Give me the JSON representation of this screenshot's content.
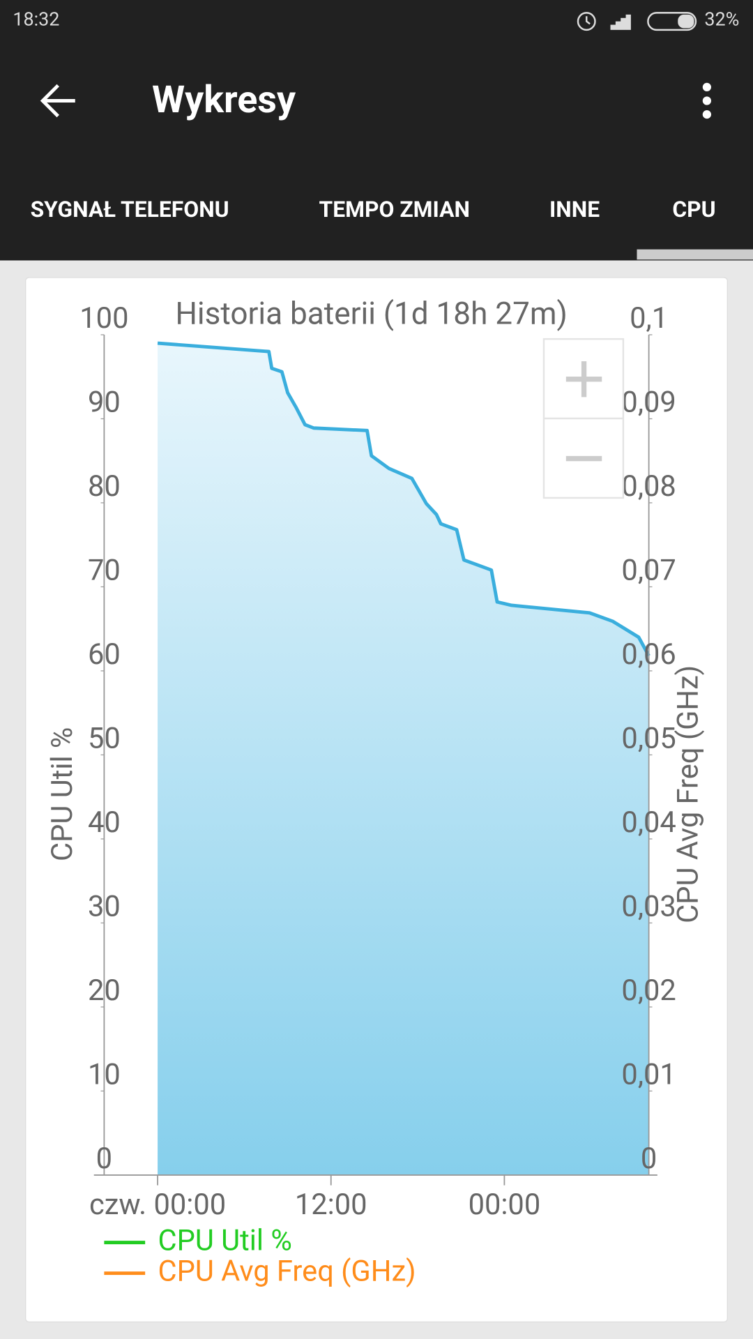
{
  "status_bar": {
    "time": "18:32",
    "battery": "32%"
  },
  "toolbar": {
    "title": "Wykresy"
  },
  "tabs": [
    "SYGNAŁ TELEFONU",
    "TEMPO ZMIAN",
    "INNE",
    "CPU"
  ],
  "chart_data": {
    "type": "area",
    "title": "Historia baterii (1d 18h 27m)",
    "y_label": "CPU Util %",
    "y2_label": "CPU Avg Freq (GHz)",
    "x": [
      0,
      7.7,
      7.9,
      8.6,
      9.0,
      9.6,
      10.2,
      10.8,
      14.5,
      14.8,
      16.0,
      17.6,
      18.6,
      19.3,
      19.6,
      20.7,
      21.2,
      23.1,
      23.5,
      24.5,
      29.9,
      31.5,
      33.3,
      34.0
    ],
    "values": [
      99.0,
      98.0,
      96.0,
      95.6,
      93.1,
      91.3,
      89.3,
      88.9,
      88.6,
      85.6,
      84.1,
      82.9,
      79.9,
      78.6,
      77.5,
      76.8,
      73.2,
      72.0,
      68.2,
      67.8,
      66.9,
      65.9,
      64.0,
      61.8
    ],
    "color": "#3aaedd",
    "xlim": [
      -3.7,
      34
    ],
    "xticks": [
      {
        "value": 0,
        "label": "czw. 00:00"
      },
      {
        "value": 12,
        "label": "12:00"
      },
      {
        "value": 24,
        "label": "00:00"
      }
    ],
    "ylim": [
      0,
      100
    ],
    "yticks": [
      0,
      10,
      20,
      30,
      40,
      50,
      60,
      70,
      80,
      90,
      100
    ],
    "y2lim": [
      0,
      0.1
    ],
    "y2ticks": [
      0,
      {
        "value": 0.01,
        "label": "0,01"
      },
      {
        "value": 0.02,
        "label": "0,02"
      },
      {
        "value": 0.03,
        "label": "0,03"
      },
      {
        "value": 0.04,
        "label": "0,04"
      },
      {
        "value": 0.05,
        "label": "0,05"
      },
      {
        "value": 0.06,
        "label": "0,06"
      },
      {
        "value": 0.07,
        "label": "0,07"
      },
      {
        "value": 0.08,
        "label": "0,08"
      },
      {
        "value": 0.09,
        "label": "0,09"
      },
      {
        "value": 0.1,
        "label": "0,1"
      }
    ],
    "grid": false,
    "legend": [
      {
        "name": "CPU Util %",
        "color": "#22cc22"
      },
      {
        "name": "CPU Avg Freq (GHz)",
        "color": "#ff8c1a"
      }
    ]
  }
}
